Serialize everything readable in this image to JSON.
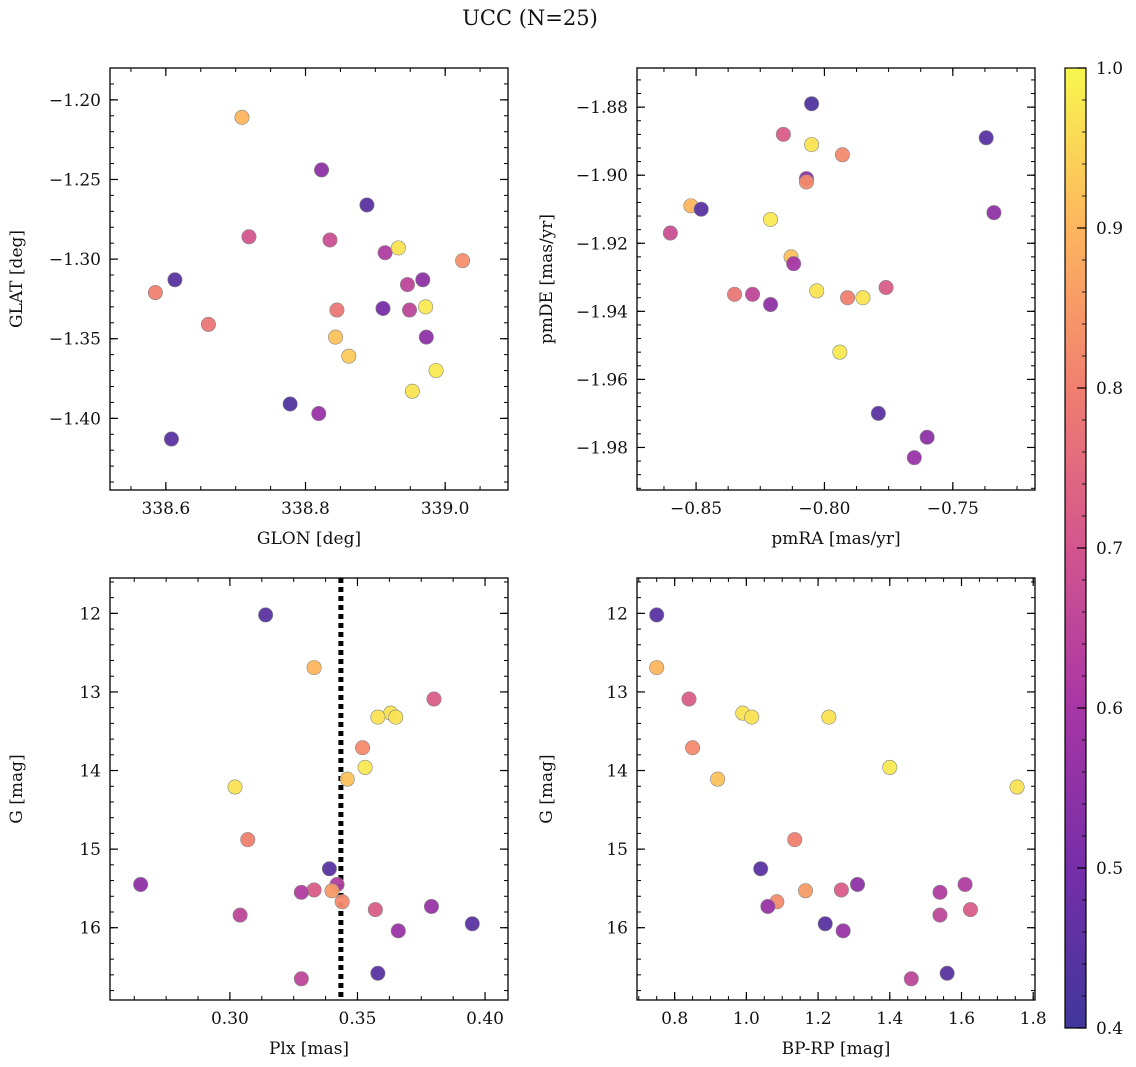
{
  "figure": {
    "title": "UCC (N=25)"
  },
  "colorbar": {
    "min": 0.4,
    "max": 1.0,
    "ticks": [
      0.4,
      0.5,
      0.6,
      0.7,
      0.8,
      0.9,
      1.0
    ],
    "tick_labels": [
      "0.4",
      "0.5",
      "0.6",
      "0.7",
      "0.8",
      "0.9",
      "1.0"
    ],
    "colormap": "plasma"
  },
  "chart_data": [
    {
      "type": "scatter",
      "xlabel": "GLON [deg]",
      "ylabel": "GLAT [deg]",
      "xlim": [
        338.52,
        339.09
      ],
      "ylim": [
        -1.445,
        -1.18
      ],
      "y_inverted": false,
      "xticks": [
        338.6,
        338.8,
        339.0
      ],
      "xtick_labels": [
        "338.6",
        "338.8",
        "339.0"
      ],
      "yticks": [
        -1.2,
        -1.25,
        -1.3,
        -1.35,
        -1.4
      ],
      "ytick_labels": [
        "−1.20",
        "−1.25",
        "−1.30",
        "−1.35",
        "−1.40"
      ],
      "points": [
        {
          "x": 338.709,
          "y": -1.211,
          "c": 0.9
        },
        {
          "x": 338.823,
          "y": -1.244,
          "c": 0.55
        },
        {
          "x": 338.888,
          "y": -1.266,
          "c": 0.45
        },
        {
          "x": 338.719,
          "y": -1.286,
          "c": 0.7
        },
        {
          "x": 338.835,
          "y": -1.288,
          "c": 0.68
        },
        {
          "x": 338.914,
          "y": -1.296,
          "c": 0.62
        },
        {
          "x": 338.933,
          "y": -1.293,
          "c": 0.97
        },
        {
          "x": 339.025,
          "y": -1.301,
          "c": 0.83
        },
        {
          "x": 338.613,
          "y": -1.313,
          "c": 0.45
        },
        {
          "x": 338.585,
          "y": -1.321,
          "c": 0.8
        },
        {
          "x": 338.968,
          "y": -1.313,
          "c": 0.55
        },
        {
          "x": 338.946,
          "y": -1.316,
          "c": 0.65
        },
        {
          "x": 338.845,
          "y": -1.332,
          "c": 0.78
        },
        {
          "x": 338.911,
          "y": -1.331,
          "c": 0.5
        },
        {
          "x": 338.949,
          "y": -1.332,
          "c": 0.65
        },
        {
          "x": 338.972,
          "y": -1.33,
          "c": 0.98
        },
        {
          "x": 338.661,
          "y": -1.341,
          "c": 0.78
        },
        {
          "x": 338.843,
          "y": -1.349,
          "c": 0.92
        },
        {
          "x": 338.973,
          "y": -1.349,
          "c": 0.55
        },
        {
          "x": 338.862,
          "y": -1.361,
          "c": 0.93
        },
        {
          "x": 338.987,
          "y": -1.37,
          "c": 0.98
        },
        {
          "x": 338.953,
          "y": -1.383,
          "c": 0.97
        },
        {
          "x": 338.778,
          "y": -1.391,
          "c": 0.43
        },
        {
          "x": 338.819,
          "y": -1.397,
          "c": 0.57
        },
        {
          "x": 338.608,
          "y": -1.413,
          "c": 0.45
        }
      ]
    },
    {
      "type": "scatter",
      "xlabel": "pmRA [mas/yr]",
      "ylabel": "pmDE [mas/yr]",
      "xlim": [
        -0.873,
        -0.718
      ],
      "ylim": [
        -1.9925,
        -1.8685
      ],
      "y_inverted": false,
      "xticks": [
        -0.85,
        -0.8,
        -0.75
      ],
      "xtick_labels": [
        "−0.85",
        "−0.80",
        "−0.75"
      ],
      "yticks": [
        -1.88,
        -1.9,
        -1.92,
        -1.94,
        -1.96,
        -1.98
      ],
      "ytick_labels": [
        "−1.88",
        "−1.90",
        "−1.92",
        "−1.94",
        "−1.96",
        "−1.98"
      ],
      "points": [
        {
          "x": -0.805,
          "y": -1.879,
          "c": 0.43
        },
        {
          "x": -0.816,
          "y": -1.888,
          "c": 0.72
        },
        {
          "x": -0.737,
          "y": -1.889,
          "c": 0.45
        },
        {
          "x": -0.805,
          "y": -1.891,
          "c": 0.97
        },
        {
          "x": -0.793,
          "y": -1.894,
          "c": 0.82
        },
        {
          "x": -0.807,
          "y": -1.901,
          "c": 0.55
        },
        {
          "x": -0.807,
          "y": -1.902,
          "c": 0.82
        },
        {
          "x": -0.852,
          "y": -1.909,
          "c": 0.9
        },
        {
          "x": -0.848,
          "y": -1.91,
          "c": 0.45
        },
        {
          "x": -0.734,
          "y": -1.911,
          "c": 0.55
        },
        {
          "x": -0.821,
          "y": -1.913,
          "c": 0.98
        },
        {
          "x": -0.86,
          "y": -1.917,
          "c": 0.68
        },
        {
          "x": -0.813,
          "y": -1.924,
          "c": 0.92
        },
        {
          "x": -0.812,
          "y": -1.926,
          "c": 0.6
        },
        {
          "x": -0.835,
          "y": -1.935,
          "c": 0.78
        },
        {
          "x": -0.828,
          "y": -1.935,
          "c": 0.65
        },
        {
          "x": -0.803,
          "y": -1.934,
          "c": 0.97
        },
        {
          "x": -0.791,
          "y": -1.936,
          "c": 0.8
        },
        {
          "x": -0.785,
          "y": -1.936,
          "c": 0.97
        },
        {
          "x": -0.776,
          "y": -1.933,
          "c": 0.72
        },
        {
          "x": -0.821,
          "y": -1.938,
          "c": 0.55
        },
        {
          "x": -0.794,
          "y": -1.952,
          "c": 0.98
        },
        {
          "x": -0.779,
          "y": -1.97,
          "c": 0.45
        },
        {
          "x": -0.76,
          "y": -1.977,
          "c": 0.55
        },
        {
          "x": -0.765,
          "y": -1.983,
          "c": 0.57
        }
      ]
    },
    {
      "type": "scatter",
      "xlabel": "Plx [mas]",
      "ylabel": "G [mag]",
      "xlim": [
        0.253,
        0.409
      ],
      "ylim": [
        11.55,
        16.92
      ],
      "y_inverted": true,
      "xticks": [
        0.3,
        0.35,
        0.4
      ],
      "xtick_labels": [
        "0.30",
        "0.35",
        "0.40"
      ],
      "yticks": [
        12,
        13,
        14,
        15,
        16
      ],
      "ytick_labels": [
        "12",
        "13",
        "14",
        "15",
        "16"
      ],
      "vline": {
        "x": 0.3435,
        "style": "dotted"
      },
      "points": [
        {
          "x": 0.314,
          "y": 12.02,
          "c": 0.45
        },
        {
          "x": 0.333,
          "y": 12.69,
          "c": 0.9
        },
        {
          "x": 0.38,
          "y": 13.09,
          "c": 0.72
        },
        {
          "x": 0.363,
          "y": 13.27,
          "c": 0.97
        },
        {
          "x": 0.358,
          "y": 13.32,
          "c": 0.97
        },
        {
          "x": 0.365,
          "y": 13.32,
          "c": 0.97
        },
        {
          "x": 0.352,
          "y": 13.71,
          "c": 0.82
        },
        {
          "x": 0.353,
          "y": 13.96,
          "c": 0.98
        },
        {
          "x": 0.346,
          "y": 14.11,
          "c": 0.92
        },
        {
          "x": 0.302,
          "y": 14.21,
          "c": 0.97
        },
        {
          "x": 0.307,
          "y": 14.88,
          "c": 0.8
        },
        {
          "x": 0.339,
          "y": 15.25,
          "c": 0.45
        },
        {
          "x": 0.265,
          "y": 15.45,
          "c": 0.55
        },
        {
          "x": 0.342,
          "y": 15.45,
          "c": 0.62
        },
        {
          "x": 0.333,
          "y": 15.52,
          "c": 0.72
        },
        {
          "x": 0.328,
          "y": 15.55,
          "c": 0.62
        },
        {
          "x": 0.34,
          "y": 15.53,
          "c": 0.85
        },
        {
          "x": 0.344,
          "y": 15.67,
          "c": 0.82
        },
        {
          "x": 0.379,
          "y": 15.73,
          "c": 0.57
        },
        {
          "x": 0.357,
          "y": 15.77,
          "c": 0.72
        },
        {
          "x": 0.304,
          "y": 15.84,
          "c": 0.65
        },
        {
          "x": 0.395,
          "y": 15.95,
          "c": 0.45
        },
        {
          "x": 0.366,
          "y": 16.04,
          "c": 0.57
        },
        {
          "x": 0.358,
          "y": 16.58,
          "c": 0.45
        },
        {
          "x": 0.328,
          "y": 16.65,
          "c": 0.65
        }
      ]
    },
    {
      "type": "scatter",
      "xlabel": "BP-RP [mag]",
      "ylabel": "G [mag]",
      "xlim": [
        0.695,
        1.805
      ],
      "ylim": [
        11.55,
        16.92
      ],
      "y_inverted": true,
      "xticks": [
        0.8,
        1.0,
        1.2,
        1.4,
        1.6,
        1.8
      ],
      "xtick_labels": [
        "0.8",
        "1.0",
        "1.2",
        "1.4",
        "1.6",
        "1.8"
      ],
      "yticks": [
        12,
        13,
        14,
        15,
        16
      ],
      "ytick_labels": [
        "12",
        "13",
        "14",
        "15",
        "16"
      ],
      "points": [
        {
          "x": 0.75,
          "y": 12.02,
          "c": 0.45
        },
        {
          "x": 0.75,
          "y": 12.69,
          "c": 0.9
        },
        {
          "x": 0.84,
          "y": 13.09,
          "c": 0.72
        },
        {
          "x": 0.99,
          "y": 13.27,
          "c": 0.97
        },
        {
          "x": 1.015,
          "y": 13.32,
          "c": 0.97
        },
        {
          "x": 1.23,
          "y": 13.32,
          "c": 0.97
        },
        {
          "x": 0.85,
          "y": 13.71,
          "c": 0.82
        },
        {
          "x": 1.4,
          "y": 13.96,
          "c": 0.98
        },
        {
          "x": 0.92,
          "y": 14.11,
          "c": 0.92
        },
        {
          "x": 1.755,
          "y": 14.21,
          "c": 0.97
        },
        {
          "x": 1.135,
          "y": 14.88,
          "c": 0.8
        },
        {
          "x": 1.04,
          "y": 15.25,
          "c": 0.45
        },
        {
          "x": 1.31,
          "y": 15.45,
          "c": 0.55
        },
        {
          "x": 1.61,
          "y": 15.45,
          "c": 0.62
        },
        {
          "x": 1.265,
          "y": 15.52,
          "c": 0.72
        },
        {
          "x": 1.54,
          "y": 15.55,
          "c": 0.62
        },
        {
          "x": 1.165,
          "y": 15.53,
          "c": 0.85
        },
        {
          "x": 1.085,
          "y": 15.67,
          "c": 0.82
        },
        {
          "x": 1.06,
          "y": 15.73,
          "c": 0.57
        },
        {
          "x": 1.625,
          "y": 15.77,
          "c": 0.72
        },
        {
          "x": 1.54,
          "y": 15.84,
          "c": 0.65
        },
        {
          "x": 1.22,
          "y": 15.95,
          "c": 0.45
        },
        {
          "x": 1.27,
          "y": 16.04,
          "c": 0.57
        },
        {
          "x": 1.56,
          "y": 16.58,
          "c": 0.45
        },
        {
          "x": 1.46,
          "y": 16.65,
          "c": 0.65
        }
      ]
    }
  ]
}
